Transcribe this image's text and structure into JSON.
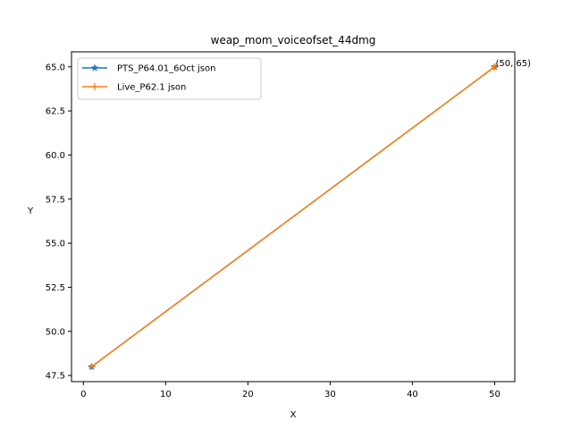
{
  "chart_data": {
    "type": "line",
    "title": "weap_mom_voiceofset_44dmg",
    "xlabel": "X",
    "ylabel": "Y",
    "xlim": [
      -1.45,
      52.45
    ],
    "ylim": [
      47.15,
      65.85
    ],
    "x_ticks": [
      0,
      10,
      20,
      30,
      40,
      50
    ],
    "y_ticks": [
      47.5,
      50.0,
      52.5,
      55.0,
      57.5,
      60.0,
      62.5,
      65.0
    ],
    "x_tick_labels": [
      "0",
      "10",
      "20",
      "30",
      "40",
      "50"
    ],
    "y_tick_labels": [
      "47.5",
      "50.0",
      "52.5",
      "55.0",
      "57.5",
      "60.0",
      "62.5",
      "65.0"
    ],
    "grid": false,
    "legend_position": "upper-left",
    "series": [
      {
        "name": "PTS_P64.01_6Oct json",
        "color": "#1f77b4",
        "marker": "star",
        "x": [
          1,
          50
        ],
        "y": [
          48,
          65
        ]
      },
      {
        "name": "Live_P62.1 json",
        "color": "#ff7f0e",
        "marker": "plus",
        "x": [
          1,
          50
        ],
        "y": [
          48,
          65
        ]
      }
    ],
    "annotations": [
      {
        "text": "(50, 65)",
        "x": 50,
        "y": 65
      }
    ]
  }
}
